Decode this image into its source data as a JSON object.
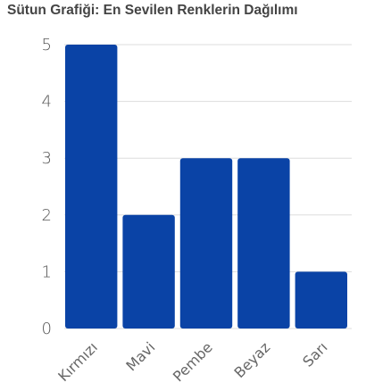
{
  "chart_data": {
    "type": "bar",
    "title": "Sütun Grafiği: En Sevilen Renklerin Dağılımı",
    "categories": [
      "Kırmızı",
      "Mavi",
      "Pembe",
      "Beyaz",
      "Sarı"
    ],
    "values": [
      5,
      2,
      3,
      3,
      1
    ],
    "yticks": [
      "0",
      "1",
      "2",
      "3",
      "4",
      "5"
    ],
    "ylim": [
      0,
      5
    ],
    "xlabel": "",
    "ylabel": "",
    "grid": true,
    "legend": "none",
    "bar_color": "#0a43a6",
    "grid_color": "#dddddd"
  }
}
